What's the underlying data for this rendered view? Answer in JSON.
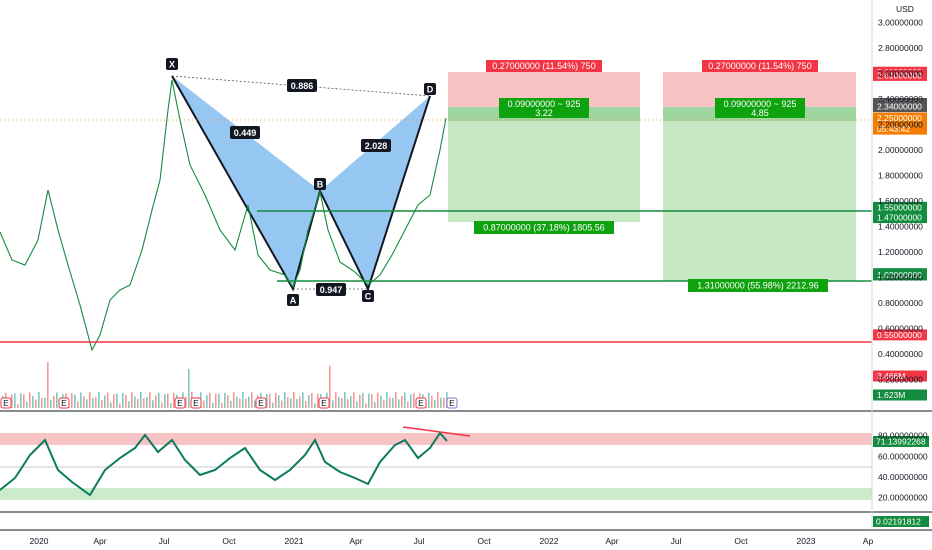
{
  "chart_data": {
    "type": "line",
    "currency": "USD",
    "x_ticks": [
      "2020",
      "Apr",
      "Jul",
      "Oct",
      "2021",
      "Apr",
      "Jul",
      "Oct",
      "2022",
      "Apr",
      "Jul",
      "Oct",
      "2023",
      "Ap"
    ],
    "y_ticks": [
      "3.00000000",
      "2.80000000",
      "2.60000000",
      "2.40000000",
      "2.20000000",
      "2.00000000",
      "1.80000000",
      "1.60000000",
      "1.40000000",
      "1.20000000",
      "1.00000000",
      "0.80000000",
      "0.60000000",
      "0.40000000",
      "0.20000000"
    ],
    "price_tags": [
      {
        "label": "2.61000000",
        "value": 2.61,
        "color": "#f23645"
      },
      {
        "label": "2.61000000",
        "value": 2.585,
        "color": "#f23645"
      },
      {
        "label": "2.34000000",
        "value": 2.365,
        "color": "#555555"
      },
      {
        "label": "2.34000000",
        "value": 2.34,
        "color": "#555555"
      },
      {
        "label": "2.25000000",
        "value": 2.25,
        "color": "#f57c00",
        "sub": "05:43:42"
      },
      {
        "label": "1.55000000",
        "value": 1.55,
        "color": "#138c3f"
      },
      {
        "label": "1.47000000",
        "value": 1.47,
        "color": "#138c3f"
      },
      {
        "label": "1.03000000",
        "value": 1.03,
        "color": "#138c3f"
      },
      {
        "label": "1.02000000",
        "value": 1.02,
        "color": "#138c3f"
      },
      {
        "label": "0.55000000",
        "value": 0.55,
        "color": "#f23645"
      },
      {
        "label": "3.466M",
        "value": 0.27,
        "color": "#f23645"
      },
      {
        "label": "1.623M",
        "value": 0.16,
        "color": "#138c3f"
      }
    ],
    "harmonic_pattern": {
      "points": [
        {
          "label": "X",
          "date": "2020-06-25",
          "price": 2.6
        },
        {
          "label": "A",
          "date": "2020-12-20",
          "price": 0.92
        },
        {
          "label": "B",
          "date": "2021-02-20",
          "price": 1.7
        },
        {
          "label": "C",
          "date": "2021-05-05",
          "price": 0.93
        },
        {
          "label": "D",
          "date": "2021-07-20",
          "price": 2.5
        }
      ],
      "ratios": [
        "0.886",
        "0.449",
        "2.028",
        "0.947"
      ]
    },
    "positions": [
      {
        "stop_label": "0.27000000 (11.54%) 750",
        "qty_label": "0.09000000 ~ 925",
        "rr": "3.22",
        "target_label": "0.87000000 (37.18%) 1805.56"
      },
      {
        "stop_label": "0.27000000 (11.54%) 750",
        "qty_label": "0.09000000 ~ 925",
        "rr": "4.85",
        "target_label": "1.31000000 (55.98%) 2212.96"
      }
    ],
    "horizontal_levels": [
      1.55,
      1.03,
      0.55
    ],
    "rsi": {
      "y_ticks": [
        "80.00000000",
        "60.00000000",
        "40.00000000",
        "20.00000000"
      ],
      "current": "71.13992268",
      "overbought_band": [
        70,
        80
      ],
      "oversold_band": [
        20,
        30
      ]
    },
    "macd": {
      "current": "0.02191812"
    },
    "earnings_marker": "E",
    "grid": true
  }
}
